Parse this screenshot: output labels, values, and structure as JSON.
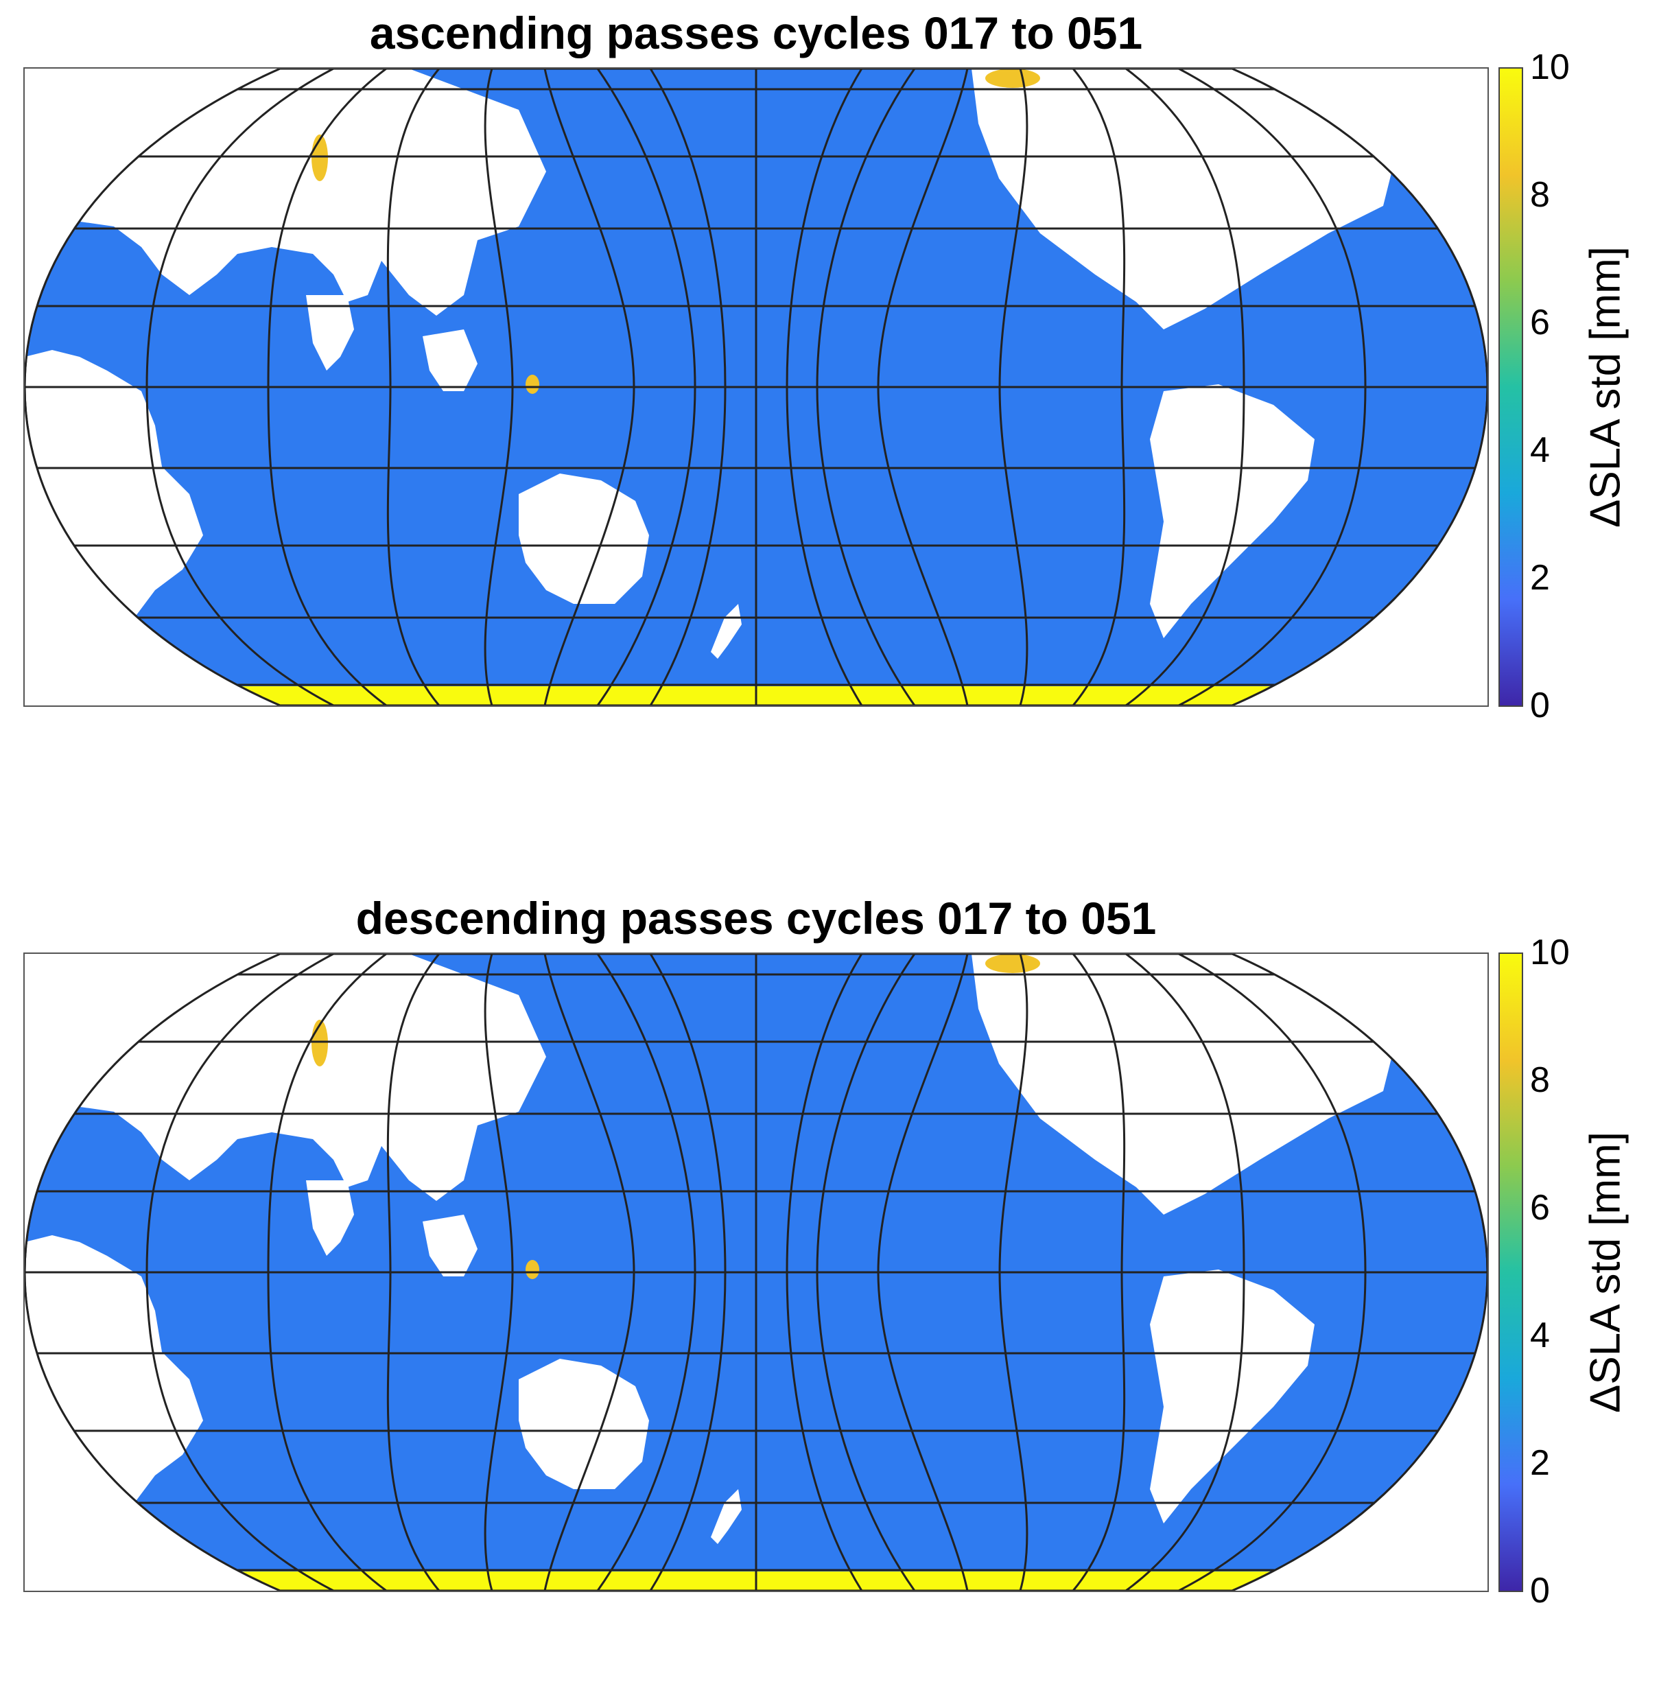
{
  "panels": [
    {
      "title": "ascending passes cycles 017 to 051",
      "colorbar": {
        "label": "ΔSLA std [mm]",
        "ticks": [
          "10",
          "8",
          "6",
          "4",
          "2",
          "0"
        ],
        "range": [
          0,
          10
        ],
        "colormap": [
          "#3e26a8",
          "#4770f9",
          "#1aa8db",
          "#25c1a4",
          "#8cca4f",
          "#f1c42a",
          "#f9fb0e"
        ]
      },
      "map": {
        "projection": "Robinson-like (Pacific-centered)",
        "ocean_typical_value_mm": 2.5,
        "ocean_color": "#2f7bf0",
        "land_color": "#ffffff",
        "graticule_color": "#222222",
        "high_values_region": "Antarctic margin"
      }
    },
    {
      "title": "descending passes cycles 017 to 051",
      "colorbar": {
        "label": "ΔSLA std [mm]",
        "ticks": [
          "10",
          "8",
          "6",
          "4",
          "2",
          "0"
        ],
        "range": [
          0,
          10
        ],
        "colormap": [
          "#3e26a8",
          "#4770f9",
          "#1aa8db",
          "#25c1a4",
          "#8cca4f",
          "#f1c42a",
          "#f9fb0e"
        ]
      },
      "map": {
        "projection": "Robinson-like (Pacific-centered)",
        "ocean_typical_value_mm": 2.5,
        "ocean_color": "#2f7bf0",
        "land_color": "#ffffff",
        "graticule_color": "#222222",
        "high_values_region": "Antarctic margin"
      }
    }
  ]
}
